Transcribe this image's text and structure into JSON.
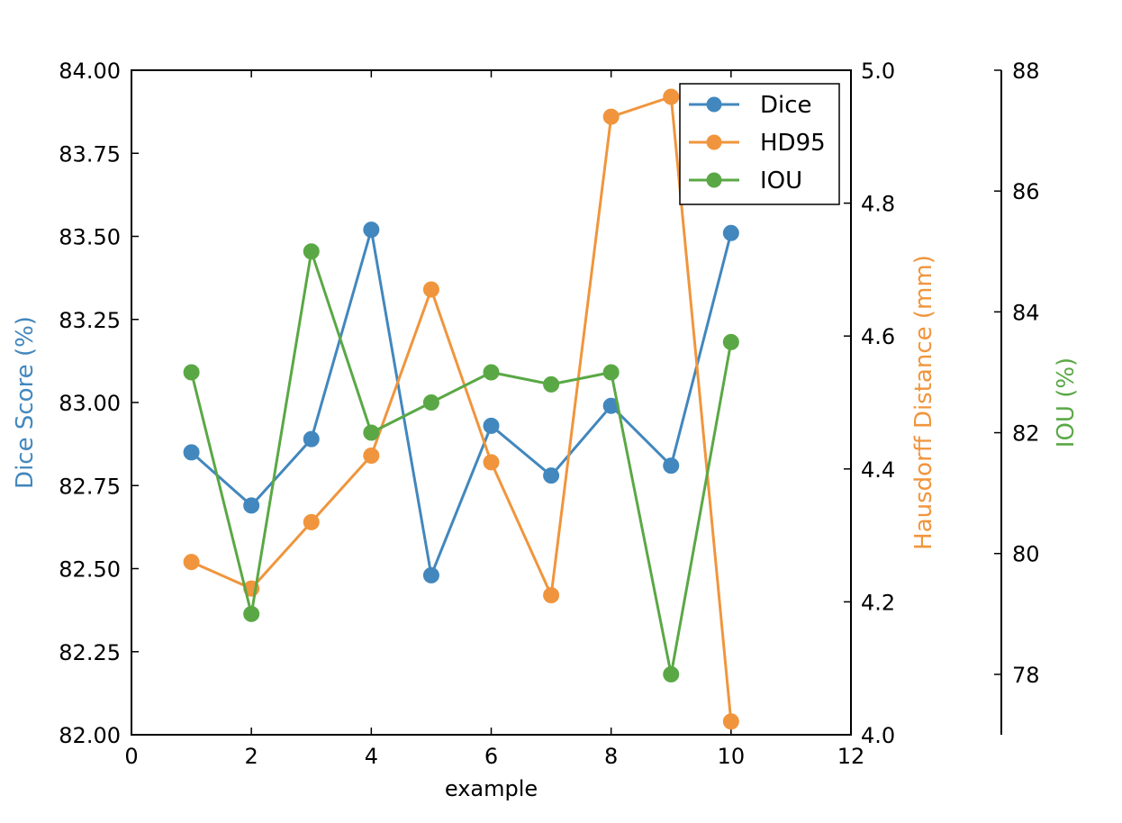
{
  "chart_data": {
    "type": "line",
    "x": [
      1,
      2,
      3,
      4,
      5,
      6,
      7,
      8,
      9,
      10
    ],
    "xlabel": "example",
    "xlim": [
      0,
      12
    ],
    "xticks": [
      "0",
      "2",
      "4",
      "6",
      "8",
      "10",
      "12"
    ],
    "axes": {
      "left": {
        "label": "Dice Score (%)",
        "color": "#4287bd",
        "ylim": [
          82.0,
          84.0
        ],
        "ticks": [
          "82.00",
          "82.25",
          "82.50",
          "82.75",
          "83.00",
          "83.25",
          "83.50",
          "83.75",
          "84.00"
        ]
      },
      "right": {
        "label": "Hausdorff Distance (mm)",
        "color": "#f0953d",
        "ylim": [
          4.0,
          5.0
        ],
        "ticks": [
          "4.0",
          "4.2",
          "4.4",
          "4.6",
          "4.8",
          "5.0"
        ]
      },
      "far_right": {
        "label": "IOU (%)",
        "color": "#5aa845",
        "ylim": [
          77.0,
          88.0
        ],
        "ticks": [
          "78",
          "80",
          "82",
          "84",
          "86",
          "88"
        ]
      }
    },
    "series": [
      {
        "name": "Dice",
        "axis": "left",
        "color": "#4287bd",
        "values": [
          82.85,
          82.69,
          82.89,
          83.52,
          82.48,
          82.93,
          82.78,
          82.99,
          82.81,
          83.51
        ]
      },
      {
        "name": "HD95",
        "axis": "right",
        "color": "#f0953d",
        "values": [
          4.26,
          4.22,
          4.32,
          4.42,
          4.67,
          4.41,
          4.21,
          4.93,
          4.96,
          4.02
        ]
      },
      {
        "name": "IOU",
        "axis": "far_right",
        "color": "#5aa845",
        "values": [
          83.0,
          79.0,
          85.0,
          82.0,
          82.5,
          83.0,
          82.8,
          83.0,
          78.0,
          83.5
        ]
      }
    ],
    "legend": "top-right",
    "grid": false
  }
}
